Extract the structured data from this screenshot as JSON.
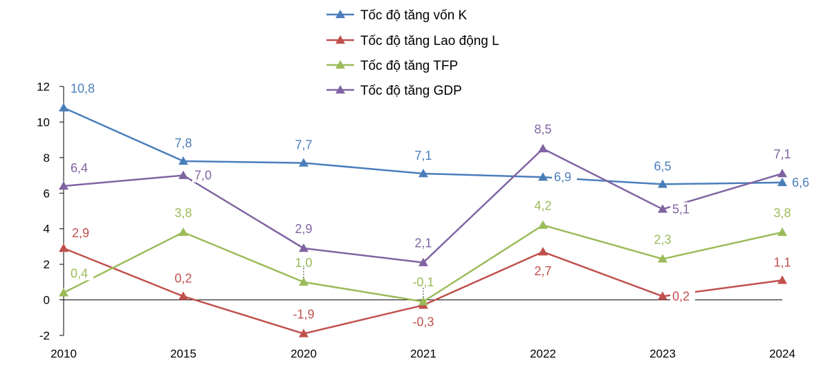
{
  "chart_data": {
    "type": "line",
    "categories": [
      "2010",
      "2015",
      "2020",
      "2021",
      "2022",
      "2023",
      "2024"
    ],
    "ylim": [
      -2,
      12
    ],
    "yticks": [
      -2,
      0,
      2,
      4,
      6,
      8,
      10,
      12
    ],
    "grid": false,
    "legend_position": "top-center",
    "series": [
      {
        "name": "Tốc độ tăng vốn K",
        "color": "#4a7ebb",
        "values": [
          10.8,
          7.8,
          7.7,
          7.1,
          6.9,
          6.5,
          6.6
        ],
        "labels": [
          "10,8",
          "7,8",
          "7,7",
          "7,1",
          "6,9",
          "6,5",
          "6,6"
        ]
      },
      {
        "name": "Tốc độ tăng Lao động L",
        "color": "#c0504d",
        "values": [
          2.9,
          0.2,
          -1.9,
          -0.3,
          2.7,
          0.2,
          1.1
        ],
        "labels": [
          "2,9",
          "0,2",
          "-1,9",
          "-0,3",
          "2,7",
          "0,2",
          "1,1"
        ]
      },
      {
        "name": "Tốc độ tăng TFP",
        "color": "#9bbb59",
        "values": [
          0.4,
          3.8,
          1.0,
          -0.1,
          4.2,
          2.3,
          3.8
        ],
        "labels": [
          "0,4",
          "3,8",
          "1,0",
          "-0,1",
          "4,2",
          "2,3",
          "3,8"
        ]
      },
      {
        "name": "Tốc độ tăng GDP",
        "color": "#8064a2",
        "values": [
          6.4,
          7.0,
          2.9,
          2.1,
          8.5,
          5.1,
          7.1
        ],
        "labels": [
          "6,4",
          "7,0",
          "2,9",
          "2,1",
          "8,5",
          "5,1",
          "7,1"
        ]
      }
    ]
  }
}
